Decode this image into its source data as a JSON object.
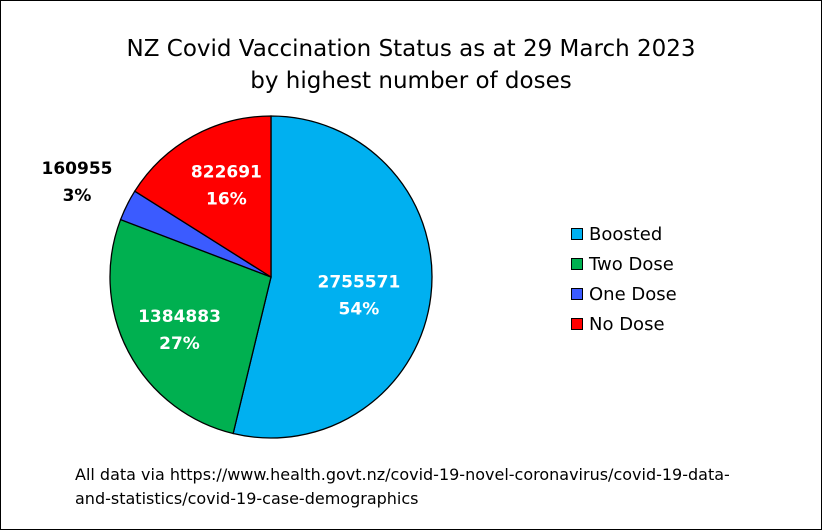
{
  "chart_data": {
    "type": "pie",
    "title": "NZ Covid Vaccination Status as at 29 March 2023",
    "subtitle": "by highest number of doses",
    "slices": [
      {
        "label": "Boosted",
        "value": 2755571,
        "percent_label": "54%",
        "color": "#00b0f0"
      },
      {
        "label": "Two Dose",
        "value": 1384883,
        "percent_label": "27%",
        "color": "#00b050"
      },
      {
        "label": "One Dose",
        "value": 160955,
        "percent_label": "3%",
        "color": "#3b5bff"
      },
      {
        "label": "No Dose",
        "value": 822691,
        "percent_label": "16%",
        "color": "#ff0000"
      }
    ],
    "legend_position": "right"
  },
  "footnote": {
    "line1": "All data via https://www.health.govt.nz/covid-19-novel-coronavirus/covid-19-data-",
    "line2": "and-statistics/covid-19-case-demographics"
  }
}
